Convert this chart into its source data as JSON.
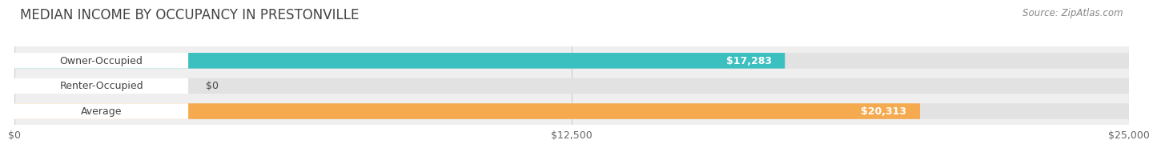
{
  "title": "MEDIAN INCOME BY OCCUPANCY IN PRESTONVILLE",
  "source": "Source: ZipAtlas.com",
  "categories": [
    "Owner-Occupied",
    "Renter-Occupied",
    "Average"
  ],
  "values": [
    17283,
    0,
    20313
  ],
  "bar_colors": [
    "#3cbfbf",
    "#c4acd4",
    "#f5aa50"
  ],
  "bar_labels": [
    "$17,283",
    "$0",
    "$20,313"
  ],
  "xlim": [
    0,
    25000
  ],
  "xticks": [
    0,
    12500,
    25000
  ],
  "xtick_labels": [
    "$0",
    "$12,500",
    "$25,000"
  ],
  "page_bg": "#ffffff",
  "chart_bg": "#efefef",
  "bar_bg_color": "#e2e2e2",
  "label_pill_color": "#ffffff",
  "title_fontsize": 12,
  "source_fontsize": 8.5,
  "label_fontsize": 9,
  "value_fontsize": 9,
  "tick_fontsize": 9
}
